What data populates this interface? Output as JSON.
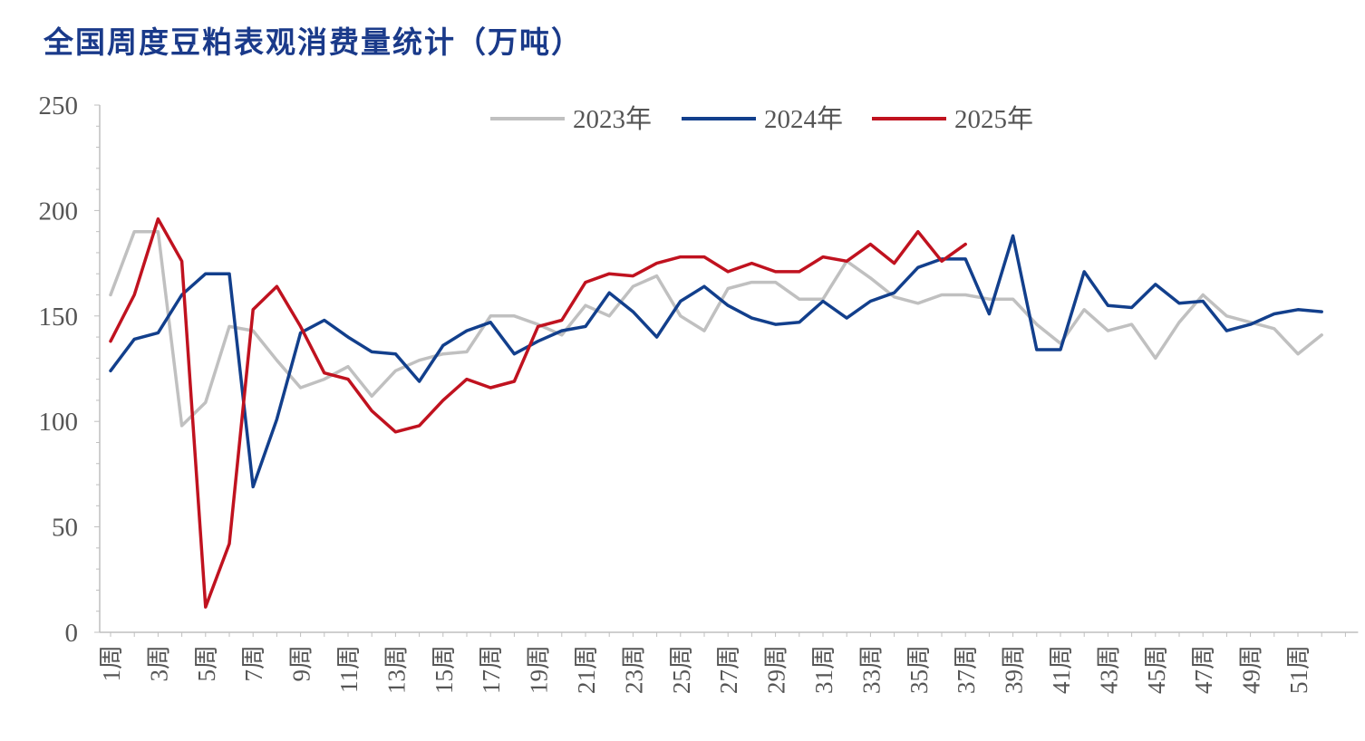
{
  "title": "全国周度豆粕表观消费量统计（万吨）",
  "chart_data": {
    "type": "line",
    "title": "全国周度豆粕表观消费量统计（万吨）",
    "xlabel": "",
    "ylabel": "",
    "ylim": [
      0,
      250
    ],
    "yticks": [
      0,
      50,
      100,
      150,
      200,
      250
    ],
    "grid": false,
    "legend": "top",
    "x": [
      "1周",
      "2周",
      "3周",
      "4周",
      "5周",
      "6周",
      "7周",
      "8周",
      "9周",
      "10周",
      "11周",
      "12周",
      "13周",
      "14周",
      "15周",
      "16周",
      "17周",
      "18周",
      "19周",
      "20周",
      "21周",
      "22周",
      "23周",
      "24周",
      "25周",
      "26周",
      "27周",
      "28周",
      "29周",
      "30周",
      "31周",
      "32周",
      "33周",
      "34周",
      "35周",
      "36周",
      "37周",
      "38周",
      "39周",
      "40周",
      "41周",
      "42周",
      "43周",
      "44周",
      "45周",
      "46周",
      "47周",
      "48周",
      "49周",
      "50周",
      "51周",
      "52周",
      "53周"
    ],
    "xtick_labels": [
      "1周",
      "3周",
      "5周",
      "7周",
      "9周",
      "11周",
      "13周",
      "15周",
      "17周",
      "19周",
      "21周",
      "23周",
      "25周",
      "27周",
      "29周",
      "31周",
      "33周",
      "35周",
      "37周",
      "39周",
      "41周",
      "43周",
      "45周",
      "47周",
      "49周",
      "51周"
    ],
    "series": [
      {
        "name": "2023年",
        "color": "#c0c0c0",
        "values": [
          160,
          190,
          190,
          98,
          109,
          145,
          143,
          129,
          116,
          120,
          126,
          112,
          124,
          129,
          132,
          133,
          150,
          150,
          146,
          141,
          155,
          150,
          164,
          169,
          150,
          143,
          163,
          166,
          166,
          158,
          158,
          176,
          168,
          159,
          156,
          160,
          160,
          158,
          158,
          146,
          137,
          153,
          143,
          146,
          130,
          147,
          160,
          150,
          147,
          144,
          132,
          141,
          null
        ]
      },
      {
        "name": "2024年",
        "color": "#123f8c",
        "values": [
          124,
          139,
          142,
          160,
          170,
          170,
          69,
          101,
          142,
          148,
          140,
          133,
          132,
          119,
          136,
          143,
          147,
          132,
          138,
          143,
          145,
          161,
          152,
          140,
          157,
          164,
          155,
          149,
          146,
          147,
          157,
          149,
          157,
          161,
          173,
          177,
          177,
          151,
          188,
          134,
          134,
          171,
          155,
          154,
          165,
          156,
          157,
          143,
          146,
          151,
          153,
          152,
          null
        ]
      },
      {
        "name": "2025年",
        "color": "#c0121f",
        "values": [
          138,
          160,
          196,
          176,
          12,
          42,
          153,
          164,
          145,
          123,
          120,
          105,
          95,
          98,
          110,
          120,
          116,
          119,
          145,
          148,
          166,
          170,
          169,
          175,
          178,
          178,
          171,
          175,
          171,
          171,
          178,
          176,
          184,
          175,
          190,
          176,
          184,
          null,
          null,
          null,
          null,
          null,
          null,
          null,
          null,
          null,
          null,
          null,
          null,
          null,
          null,
          null,
          null
        ]
      }
    ]
  }
}
